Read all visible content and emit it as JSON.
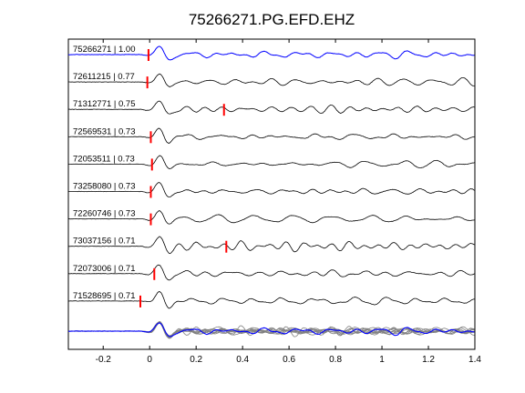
{
  "chart_data": {
    "type": "line",
    "title": "75266271.PG.EFD.EHZ",
    "xlabel": "",
    "ylabel": "",
    "xlim": [
      -0.35,
      1.4
    ],
    "x_ticks": [
      "-0.2",
      "0",
      "0.2",
      "0.4",
      "0.6",
      "0.8",
      "1",
      "1.2",
      "1.4"
    ],
    "x_tick_values": [
      -0.2,
      0,
      0.2,
      0.4,
      0.6,
      0.8,
      1.0,
      1.2,
      1.4
    ],
    "grid": false,
    "traces": [
      {
        "label": "75266271 | 1.00",
        "event_id": "75266271",
        "correlation": 1.0,
        "pick_time": -0.005,
        "color": "#0000ff",
        "reference": true
      },
      {
        "label": "72611215 | 0.77",
        "event_id": "72611215",
        "correlation": 0.77,
        "pick_time": -0.01,
        "color": "#000000"
      },
      {
        "label": "71312771 | 0.75",
        "event_id": "71312771",
        "correlation": 0.75,
        "pick_time": 0.32,
        "color": "#000000"
      },
      {
        "label": "72569531 | 0.73",
        "event_id": "72569531",
        "correlation": 0.73,
        "pick_time": 0.005,
        "color": "#000000"
      },
      {
        "label": "72053511 | 0.73",
        "event_id": "72053511",
        "correlation": 0.73,
        "pick_time": 0.01,
        "color": "#000000"
      },
      {
        "label": "73258080 | 0.73",
        "event_id": "73258080",
        "correlation": 0.73,
        "pick_time": 0.005,
        "color": "#000000"
      },
      {
        "label": "72260746 | 0.73",
        "event_id": "72260746",
        "correlation": 0.73,
        "pick_time": 0.005,
        "color": "#000000"
      },
      {
        "label": "73037156 | 0.71",
        "event_id": "73037156",
        "correlation": 0.71,
        "pick_time": 0.33,
        "color": "#000000"
      },
      {
        "label": "72073006 | 0.71",
        "event_id": "72073006",
        "correlation": 0.71,
        "pick_time": 0.02,
        "color": "#000000"
      },
      {
        "label": "71528695 | 0.71",
        "event_id": "71528695",
        "correlation": 0.71,
        "pick_time": -0.04,
        "color": "#000000"
      }
    ],
    "stack": {
      "overlay_color": "#808080",
      "reference_color": "#0000ff"
    },
    "pick_color": "#ff0000"
  }
}
